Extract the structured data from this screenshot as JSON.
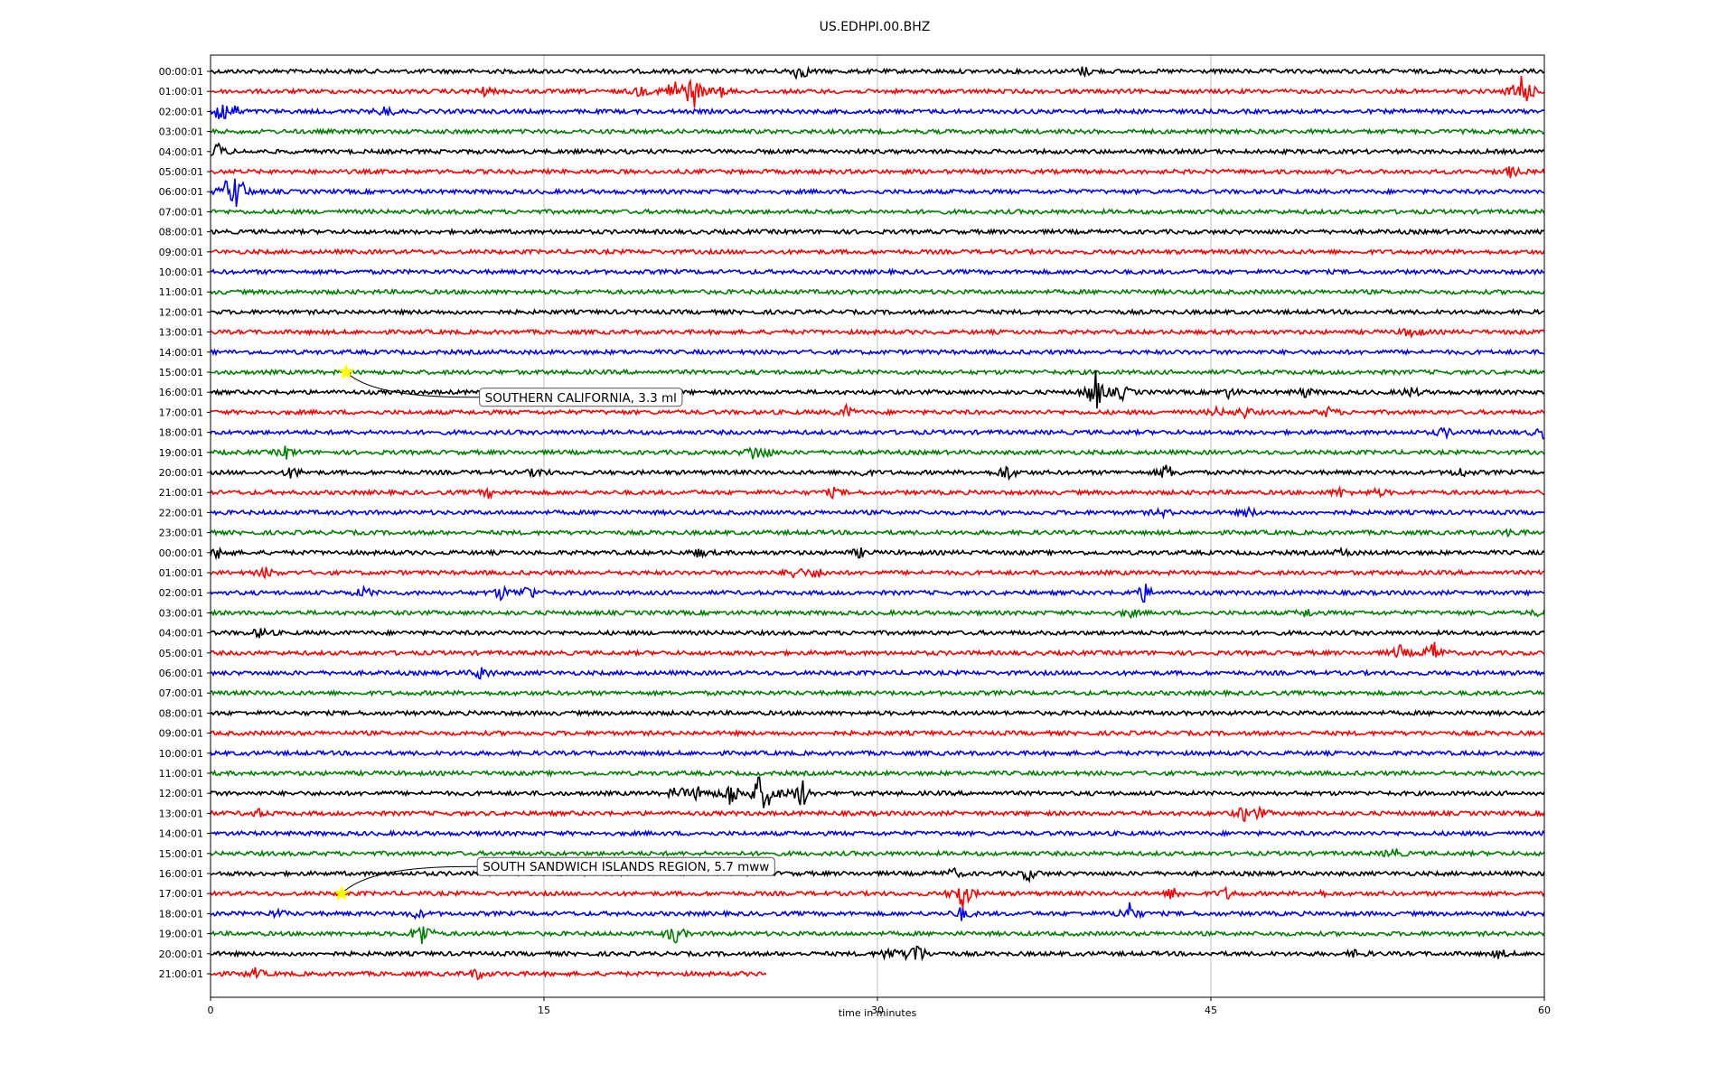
{
  "chart_data": {
    "type": "line",
    "title": "US.EDHPI.00.BHZ",
    "xlabel": "time in minutes",
    "ylabel": "",
    "xlim": [
      0,
      60
    ],
    "x_ticks": [
      0,
      15,
      30,
      45,
      60
    ],
    "grid": "vertical lines at x ticks",
    "line_colors": [
      "#000000",
      "#ff0000",
      "#0000ff",
      "#008000"
    ],
    "y_tick_labels": [
      "00:00:01",
      "01:00:01",
      "02:00:01",
      "03:00:01",
      "04:00:01",
      "05:00:01",
      "06:00:01",
      "07:00:01",
      "08:00:01",
      "09:00:01",
      "10:00:01",
      "11:00:01",
      "12:00:01",
      "13:00:01",
      "14:00:01",
      "15:00:01",
      "16:00:01",
      "17:00:01",
      "18:00:01",
      "19:00:01",
      "20:00:01",
      "21:00:01",
      "22:00:01",
      "23:00:01",
      "00:00:01",
      "01:00:01",
      "02:00:01",
      "03:00:01",
      "04:00:01",
      "05:00:01",
      "06:00:01",
      "07:00:01",
      "08:00:01",
      "09:00:01",
      "10:00:01",
      "11:00:01",
      "12:00:01",
      "13:00:01",
      "14:00:01",
      "15:00:01",
      "16:00:01",
      "17:00:01",
      "18:00:01",
      "19:00:01",
      "20:00:01",
      "21:00:01"
    ],
    "trace_end_minute": {
      "row": 45,
      "x": 25
    },
    "bursts": [
      {
        "row": 0,
        "x": 26.5,
        "amp": 0.8
      },
      {
        "row": 0,
        "x": 39.3,
        "amp": 0.4
      },
      {
        "row": 1,
        "x": 12.3,
        "amp": 0.35
      },
      {
        "row": 1,
        "x": 19.3,
        "amp": 0.4
      },
      {
        "row": 1,
        "x": 20.8,
        "amp": 1.2
      },
      {
        "row": 1,
        "x": 21.7,
        "amp": 1.6
      },
      {
        "row": 1,
        "x": 22.9,
        "amp": 0.5
      },
      {
        "row": 1,
        "x": 59.0,
        "amp": 2.0
      },
      {
        "row": 2,
        "x": 0.4,
        "amp": 1.3
      },
      {
        "row": 2,
        "x": 1.0,
        "amp": 0.6
      },
      {
        "row": 2,
        "x": 7.9,
        "amp": 0.45
      },
      {
        "row": 4,
        "x": 0.3,
        "amp": 0.7
      },
      {
        "row": 5,
        "x": 58.5,
        "amp": 0.45
      },
      {
        "row": 6,
        "x": 1.2,
        "amp": 1.7
      },
      {
        "row": 6,
        "x": 0.7,
        "amp": 0.6
      },
      {
        "row": 13,
        "x": 54.1,
        "amp": 0.6
      },
      {
        "row": 16,
        "x": 39.8,
        "amp": 1.9
      },
      {
        "row": 16,
        "x": 41.0,
        "amp": 0.6
      },
      {
        "row": 16,
        "x": 45.8,
        "amp": 0.4
      },
      {
        "row": 16,
        "x": 49.2,
        "amp": 0.4
      },
      {
        "row": 16,
        "x": 54.0,
        "amp": 0.4
      },
      {
        "row": 17,
        "x": 28.6,
        "amp": 0.5
      },
      {
        "row": 17,
        "x": 45.3,
        "amp": 0.35
      },
      {
        "row": 17,
        "x": 46.5,
        "amp": 0.45
      },
      {
        "row": 17,
        "x": 50.3,
        "amp": 0.4
      },
      {
        "row": 18,
        "x": 55.5,
        "amp": 0.4
      },
      {
        "row": 18,
        "x": 59.9,
        "amp": 0.5
      },
      {
        "row": 19,
        "x": 3.4,
        "amp": 0.5
      },
      {
        "row": 19,
        "x": 24.4,
        "amp": 0.55
      },
      {
        "row": 19,
        "x": 24.9,
        "amp": 0.4
      },
      {
        "row": 20,
        "x": 3.7,
        "amp": 0.5
      },
      {
        "row": 20,
        "x": 14.7,
        "amp": 0.4
      },
      {
        "row": 20,
        "x": 29.2,
        "amp": 0.4
      },
      {
        "row": 20,
        "x": 35.8,
        "amp": 0.7
      },
      {
        "row": 20,
        "x": 43.0,
        "amp": 0.7
      },
      {
        "row": 20,
        "x": 56.2,
        "amp": 0.4
      },
      {
        "row": 21,
        "x": 12.5,
        "amp": 0.35
      },
      {
        "row": 21,
        "x": 28.0,
        "amp": 0.35
      },
      {
        "row": 21,
        "x": 50.8,
        "amp": 0.35
      },
      {
        "row": 21,
        "x": 52.5,
        "amp": 0.3
      },
      {
        "row": 22,
        "x": 42.8,
        "amp": 0.3
      },
      {
        "row": 22,
        "x": 46.7,
        "amp": 0.35
      },
      {
        "row": 23,
        "x": 58.5,
        "amp": 0.3
      },
      {
        "row": 24,
        "x": 0.4,
        "amp": 0.5
      },
      {
        "row": 24,
        "x": 22.0,
        "amp": 0.35
      },
      {
        "row": 24,
        "x": 29.2,
        "amp": 0.35
      },
      {
        "row": 24,
        "x": 51.0,
        "amp": 0.35
      },
      {
        "row": 25,
        "x": 2.5,
        "amp": 0.4
      },
      {
        "row": 25,
        "x": 26.3,
        "amp": 0.55
      },
      {
        "row": 25,
        "x": 27.3,
        "amp": 0.4
      },
      {
        "row": 26,
        "x": 6.9,
        "amp": 0.45
      },
      {
        "row": 26,
        "x": 13.1,
        "amp": 0.6
      },
      {
        "row": 26,
        "x": 14.3,
        "amp": 0.7
      },
      {
        "row": 26,
        "x": 42.0,
        "amp": 0.8
      },
      {
        "row": 27,
        "x": 41.3,
        "amp": 0.35
      },
      {
        "row": 27,
        "x": 49.3,
        "amp": 0.35
      },
      {
        "row": 27,
        "x": 59.9,
        "amp": 0.35
      },
      {
        "row": 28,
        "x": 2.3,
        "amp": 0.45
      },
      {
        "row": 29,
        "x": 53.5,
        "amp": 0.6
      },
      {
        "row": 29,
        "x": 55.0,
        "amp": 1.0
      },
      {
        "row": 30,
        "x": 12.2,
        "amp": 0.6
      },
      {
        "row": 36,
        "x": 21.0,
        "amp": 0.6
      },
      {
        "row": 36,
        "x": 22.0,
        "amp": 0.7
      },
      {
        "row": 36,
        "x": 23.4,
        "amp": 1.2
      },
      {
        "row": 36,
        "x": 24.7,
        "amp": 1.6
      },
      {
        "row": 36,
        "x": 25.2,
        "amp": 1.0
      },
      {
        "row": 36,
        "x": 26.6,
        "amp": 1.3
      },
      {
        "row": 37,
        "x": 2.1,
        "amp": 0.35
      },
      {
        "row": 37,
        "x": 46.5,
        "amp": 0.6
      },
      {
        "row": 37,
        "x": 47.2,
        "amp": 0.4
      },
      {
        "row": 39,
        "x": 53.2,
        "amp": 0.45
      },
      {
        "row": 40,
        "x": 33.4,
        "amp": 0.4
      },
      {
        "row": 40,
        "x": 36.8,
        "amp": 0.55
      },
      {
        "row": 41,
        "x": 33.8,
        "amp": 1.5
      },
      {
        "row": 41,
        "x": 43.3,
        "amp": 0.55
      },
      {
        "row": 41,
        "x": 45.7,
        "amp": 0.45
      },
      {
        "row": 41,
        "x": 49.8,
        "amp": 0.3
      },
      {
        "row": 42,
        "x": 3.0,
        "amp": 0.3
      },
      {
        "row": 42,
        "x": 9.3,
        "amp": 0.35
      },
      {
        "row": 42,
        "x": 33.8,
        "amp": 0.55
      },
      {
        "row": 42,
        "x": 41.3,
        "amp": 1.0
      },
      {
        "row": 43,
        "x": 9.5,
        "amp": 1.2
      },
      {
        "row": 43,
        "x": 20.9,
        "amp": 0.9
      },
      {
        "row": 44,
        "x": 30.5,
        "amp": 0.6
      },
      {
        "row": 44,
        "x": 31.7,
        "amp": 1.3
      },
      {
        "row": 44,
        "x": 51.6,
        "amp": 0.35
      },
      {
        "row": 44,
        "x": 58.0,
        "amp": 0.35
      },
      {
        "row": 45,
        "x": 2.0,
        "amp": 0.4
      },
      {
        "row": 45,
        "x": 12.0,
        "amp": 0.4
      }
    ],
    "annotations": [
      {
        "text": "SOUTHERN CALIFORNIA, 3.3 ml",
        "x": 6.1,
        "row": 15,
        "label_offset_rows": 1.25,
        "label_x": 12.1
      },
      {
        "text": "SOUTH SANDWICH ISLANDS REGION, 5.7 mww",
        "x": 5.9,
        "row": 41,
        "label_offset_rows": -1.35,
        "label_x": 12.0
      }
    ],
    "marker_color": "#ffff00"
  }
}
